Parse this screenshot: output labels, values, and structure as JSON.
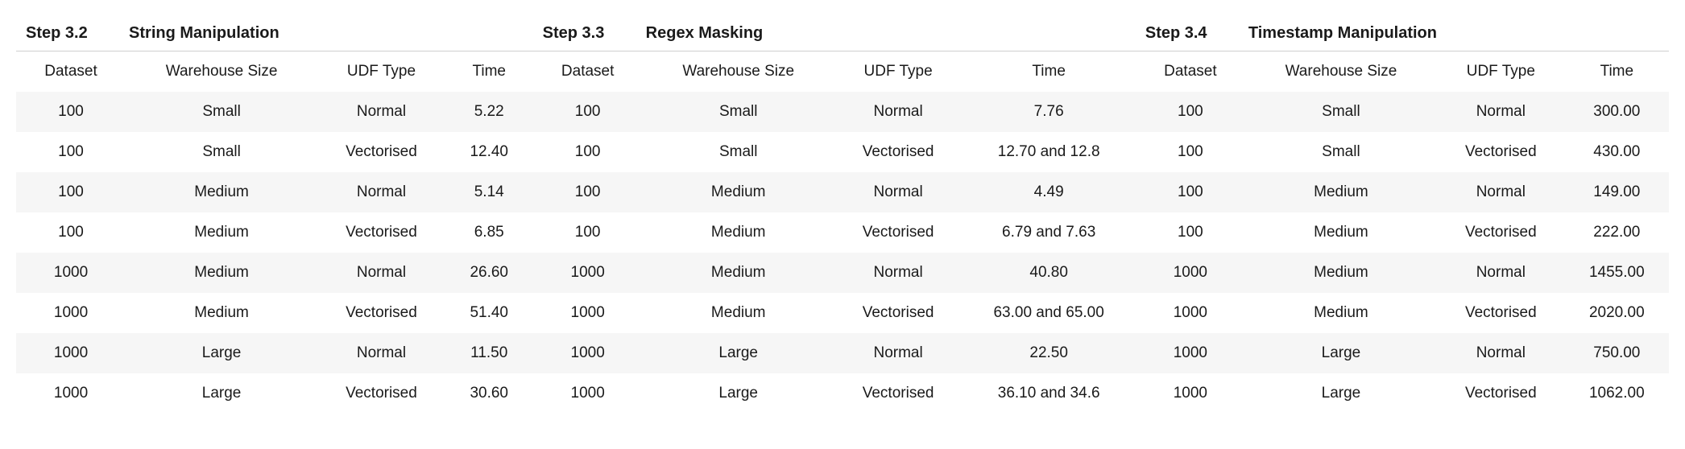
{
  "sections": [
    {
      "step": "Step 3.2",
      "title": "String Manipulation"
    },
    {
      "step": "Step 3.3",
      "title": "Regex Masking"
    },
    {
      "step": "Step 3.4",
      "title": "Timestamp Manipulation"
    }
  ],
  "columns": [
    "Dataset",
    "Warehouse Size",
    "UDF Type",
    "Time"
  ],
  "rows": [
    {
      "s1": {
        "dataset": "100",
        "wh": "Small",
        "udf": "Normal",
        "time": "5.22"
      },
      "s2": {
        "dataset": "100",
        "wh": "Small",
        "udf": "Normal",
        "time": "7.76"
      },
      "s3": {
        "dataset": "100",
        "wh": "Small",
        "udf": "Normal",
        "time": "300.00"
      }
    },
    {
      "s1": {
        "dataset": "100",
        "wh": "Small",
        "udf": "Vectorised",
        "time": "12.40"
      },
      "s2": {
        "dataset": "100",
        "wh": "Small",
        "udf": "Vectorised",
        "time": "12.70 and 12.8"
      },
      "s3": {
        "dataset": "100",
        "wh": "Small",
        "udf": "Vectorised",
        "time": "430.00"
      }
    },
    {
      "s1": {
        "dataset": "100",
        "wh": "Medium",
        "udf": "Normal",
        "time": "5.14"
      },
      "s2": {
        "dataset": "100",
        "wh": "Medium",
        "udf": "Normal",
        "time": "4.49"
      },
      "s3": {
        "dataset": "100",
        "wh": "Medium",
        "udf": "Normal",
        "time": "149.00"
      }
    },
    {
      "s1": {
        "dataset": "100",
        "wh": "Medium",
        "udf": "Vectorised",
        "time": "6.85"
      },
      "s2": {
        "dataset": "100",
        "wh": "Medium",
        "udf": "Vectorised",
        "time": "6.79 and 7.63"
      },
      "s3": {
        "dataset": "100",
        "wh": "Medium",
        "udf": "Vectorised",
        "time": "222.00"
      }
    },
    {
      "s1": {
        "dataset": "1000",
        "wh": "Medium",
        "udf": "Normal",
        "time": "26.60"
      },
      "s2": {
        "dataset": "1000",
        "wh": "Medium",
        "udf": "Normal",
        "time": "40.80"
      },
      "s3": {
        "dataset": "1000",
        "wh": "Medium",
        "udf": "Normal",
        "time": "1455.00"
      }
    },
    {
      "s1": {
        "dataset": "1000",
        "wh": "Medium",
        "udf": "Vectorised",
        "time": "51.40"
      },
      "s2": {
        "dataset": "1000",
        "wh": "Medium",
        "udf": "Vectorised",
        "time": "63.00 and 65.00"
      },
      "s3": {
        "dataset": "1000",
        "wh": "Medium",
        "udf": "Vectorised",
        "time": "2020.00"
      }
    },
    {
      "s1": {
        "dataset": "1000",
        "wh": "Large",
        "udf": "Normal",
        "time": "11.50"
      },
      "s2": {
        "dataset": "1000",
        "wh": "Large",
        "udf": "Normal",
        "time": "22.50"
      },
      "s3": {
        "dataset": "1000",
        "wh": "Large",
        "udf": "Normal",
        "time": "750.00"
      }
    },
    {
      "s1": {
        "dataset": "1000",
        "wh": "Large",
        "udf": "Vectorised",
        "time": "30.60"
      },
      "s2": {
        "dataset": "1000",
        "wh": "Large",
        "udf": "Vectorised",
        "time": "36.10 and 34.6"
      },
      "s3": {
        "dataset": "1000",
        "wh": "Large",
        "udf": "Vectorised",
        "time": "1062.00"
      }
    }
  ],
  "styling": {
    "stripe_color": "#f6f6f6",
    "border_color": "#cfcfcf",
    "text_color": "#1a1a1a",
    "background_color": "#ffffff",
    "body_fontsize": 19,
    "header_fontsize": 20
  }
}
